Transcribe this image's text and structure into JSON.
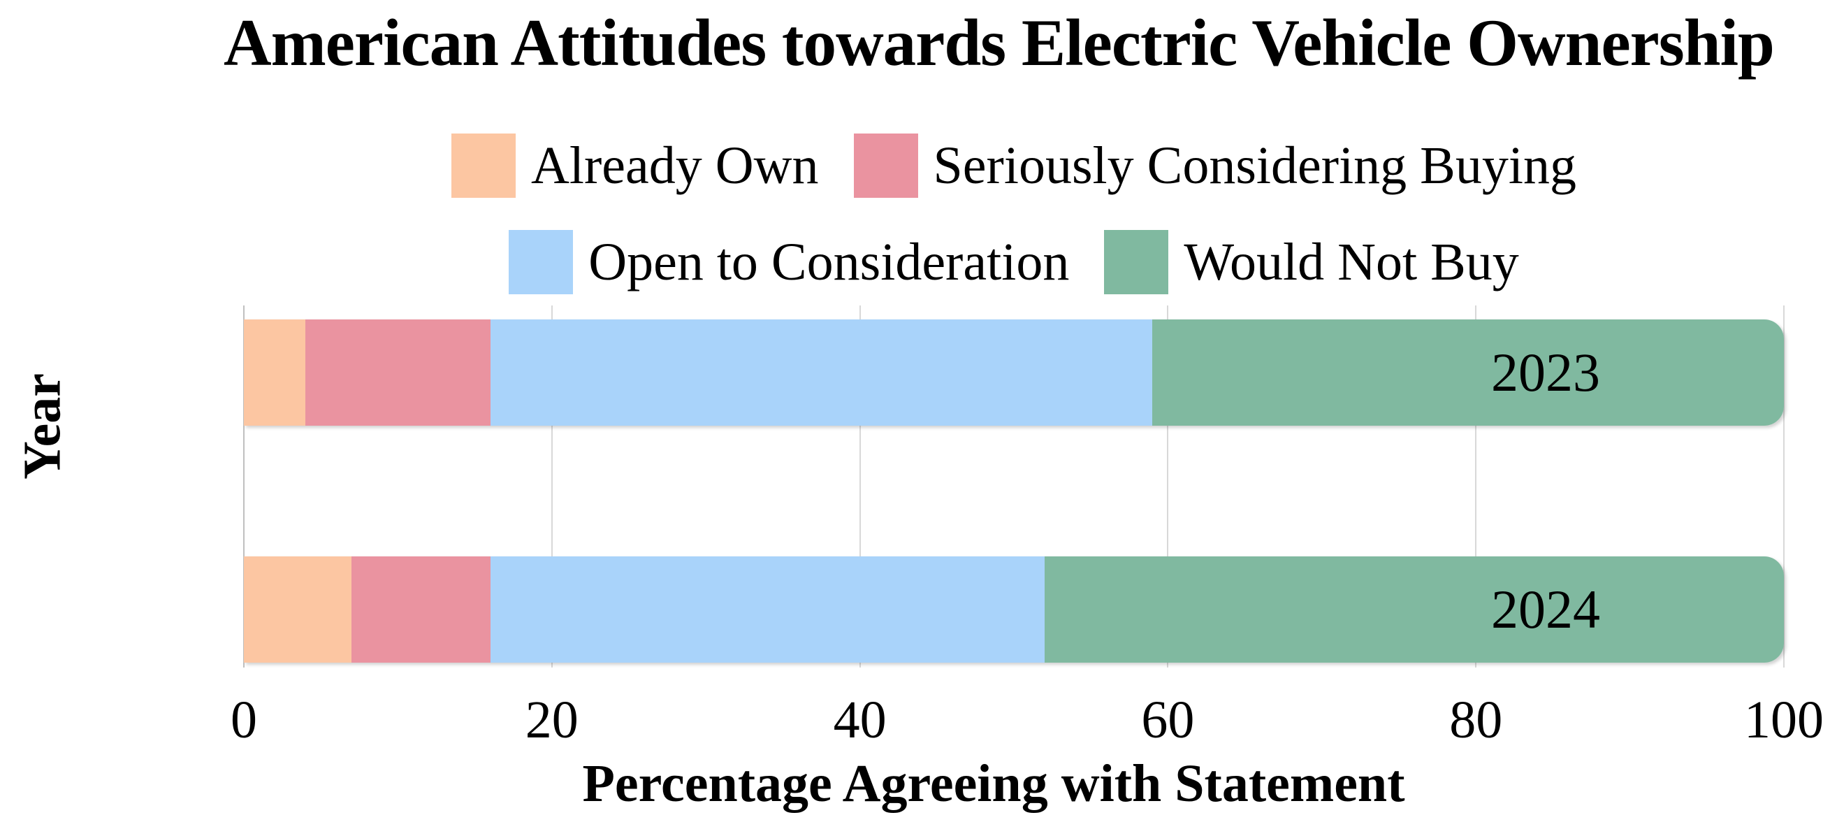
{
  "chart_data": {
    "type": "bar",
    "orientation": "horizontal-stacked",
    "title": "American Attitudes towards Electric Vehicle Ownership",
    "xlabel": "Percentage Agreeing with Statement",
    "ylabel": "Year",
    "categories": [
      "2023",
      "2024"
    ],
    "series": [
      {
        "name": "Already Own",
        "color": "#FCC6A2",
        "values": [
          4,
          7
        ]
      },
      {
        "name": "Seriously Considering Buying",
        "color": "#EA93A0",
        "values": [
          12,
          9
        ]
      },
      {
        "name": "Open to Consideration",
        "color": "#A9D3FA",
        "values": [
          43,
          36
        ]
      },
      {
        "name": "Would Not Buy",
        "color": "#80B9A0",
        "values": [
          41,
          48
        ]
      }
    ],
    "xlim": [
      0,
      100
    ],
    "xticks": [
      0,
      20,
      40,
      60,
      80,
      100
    ],
    "grid": "vertical",
    "gridline_color": "#d8d8d8",
    "legend_position": "top",
    "legend_rows": [
      [
        0,
        1
      ],
      [
        2,
        3
      ]
    ],
    "text_color": "#000000",
    "background_color": "#ffffff"
  }
}
